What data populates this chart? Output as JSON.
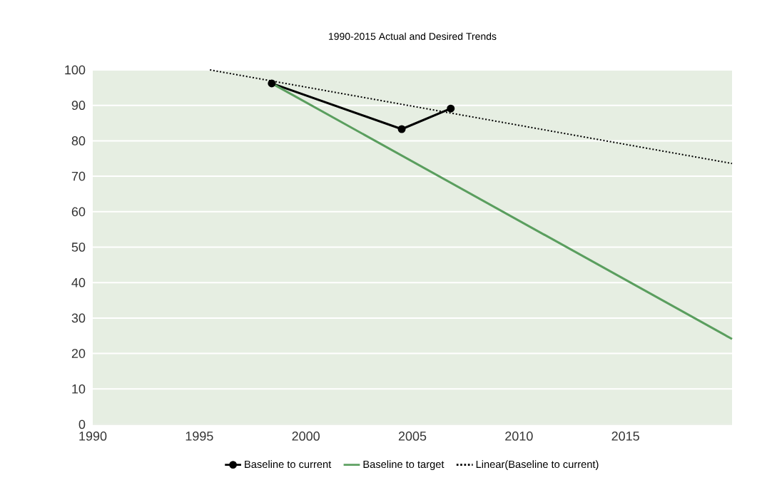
{
  "chart_data": {
    "type": "line",
    "title": "1990-2015 Actual and Desired Trends",
    "xlim": [
      1990,
      2020
    ],
    "xticks": [
      1990,
      1995,
      2000,
      2005,
      2010,
      2015
    ],
    "ylim": [
      0,
      100
    ],
    "yticks": [
      0,
      10,
      20,
      30,
      40,
      50,
      60,
      70,
      80,
      90,
      100
    ],
    "grid": "y",
    "legend": "bottom",
    "series": [
      {
        "name": "Baseline to current",
        "color": "#000000",
        "x": [
          1998.4,
          2004.5,
          2006.8
        ],
        "values": [
          96.2,
          83.3,
          89.1
        ],
        "marker": "circle",
        "line_style": "solid"
      },
      {
        "name": "Baseline to target",
        "color": "#5a9e5e",
        "x": [
          1998.4,
          2020
        ],
        "values": [
          96.2,
          24.1
        ],
        "marker": "none",
        "line_style": "solid"
      },
      {
        "name": "Linear(Baseline to current)",
        "type": "line",
        "color": "#000000",
        "x": [
          1995.5,
          2020
        ],
        "values": [
          100,
          73.6
        ],
        "marker": "none",
        "line_style": "dotted"
      }
    ]
  }
}
